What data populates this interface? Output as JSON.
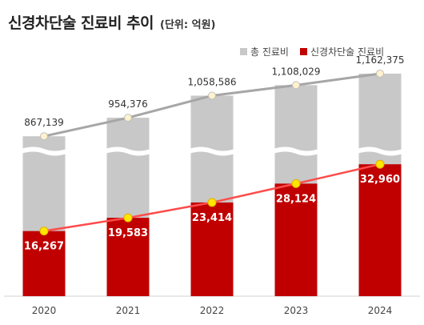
{
  "title": "신경차단술 진료비 추이",
  "subtitle": "(단위: 억원)",
  "legend": {
    "total_label": "총 진료비",
    "nerve_label": "신경차단술 진료비"
  },
  "colors": {
    "total_bar": "#c8c8c8",
    "total_line": "#a6a6a6",
    "nerve_bar": "#c00000",
    "nerve_line": "#ff4b4b",
    "total_marker": "#fff2cc",
    "nerve_marker": "#ffe600"
  },
  "chart_data": {
    "type": "bar",
    "title": "신경차단술 진료비 추이",
    "subtitle": "(단위: 억원)",
    "categories": [
      "2020",
      "2021",
      "2022",
      "2023",
      "2024"
    ],
    "series": [
      {
        "name": "총 진료비",
        "values": [
          867139,
          954376,
          1058586,
          1108029,
          1162375
        ],
        "labels": [
          "867,139",
          "954,376",
          "1,058,586",
          "1,108,029",
          "1,162,375"
        ]
      },
      {
        "name": "신경차단술 진료비",
        "values": [
          16267,
          19583,
          23414,
          28124,
          32960
        ],
        "labels": [
          "16,267",
          "19,583",
          "23,414",
          "28,124",
          "32,960"
        ]
      }
    ],
    "axis_break": true,
    "grid": false,
    "legend_position": "top-right"
  }
}
